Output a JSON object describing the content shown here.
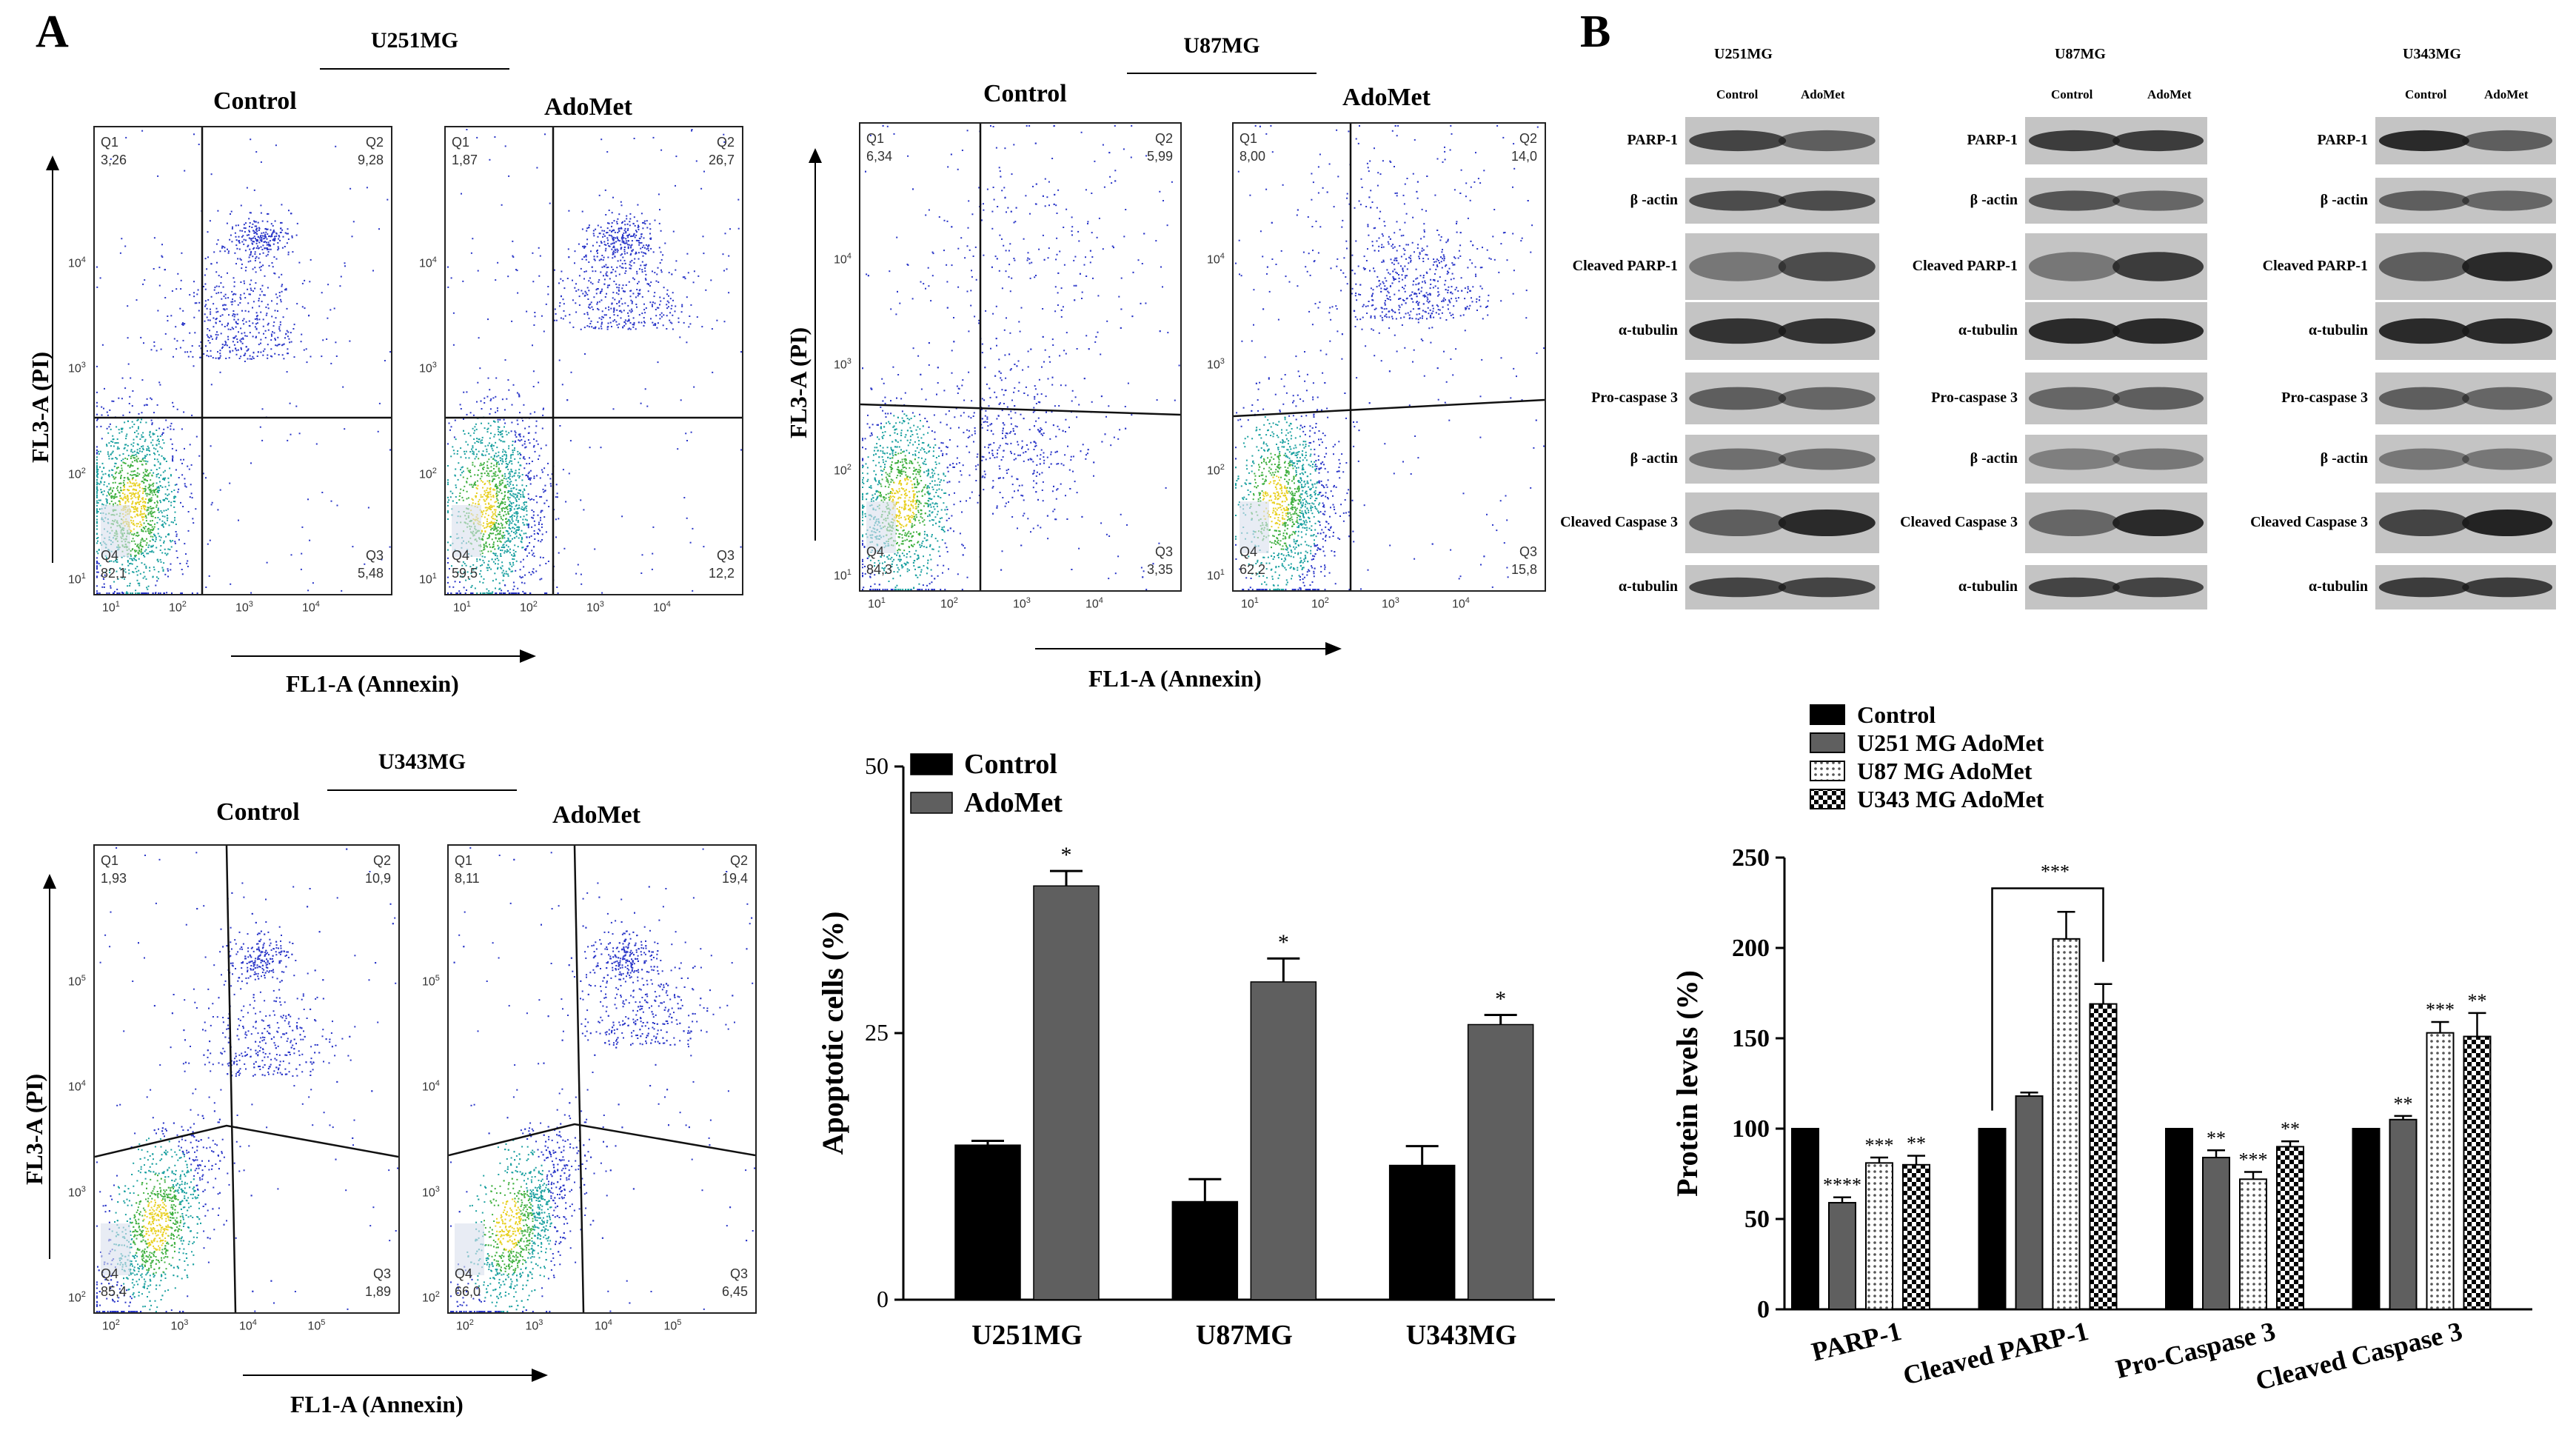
{
  "panelA": {
    "letter": "A",
    "axis_y": "FL3-A (PI)",
    "axis_x": "FL1-A (Annexin)",
    "control_label": "Control",
    "adomet_label": "AdoMet",
    "groups": [
      {
        "cell_line": "U251MG",
        "control": {
          "Q1": "3,26",
          "Q2": "9,28",
          "Q3": "5,48",
          "Q4": "82,1"
        },
        "adomet": {
          "Q1": "1,87",
          "Q2": "26,7",
          "Q3": "12,2",
          "Q4": "59,5"
        }
      },
      {
        "cell_line": "U87MG",
        "control": {
          "Q1": "6,34",
          "Q2": "5,99",
          "Q3": "3,35",
          "Q4": "84,3"
        },
        "adomet": {
          "Q1": "8,00",
          "Q2": "14,0",
          "Q3": "15,8",
          "Q4": "62,2"
        }
      },
      {
        "cell_line": "U343MG",
        "control": {
          "Q1": "1,93",
          "Q2": "10,9",
          "Q3": "1,89",
          "Q4": "85,4"
        },
        "adomet": {
          "Q1": "8,11",
          "Q2": "19,4",
          "Q3": "6,45",
          "Q4": "66,0"
        }
      }
    ],
    "quadrant_names": [
      "Q1",
      "Q2",
      "Q3",
      "Q4"
    ],
    "tick_exponents_a": [
      "1",
      "2",
      "3",
      "4"
    ],
    "tick_exponents_c": [
      "2",
      "3",
      "4",
      "5"
    ],
    "tick_base": "10"
  },
  "panelB": {
    "letter": "B",
    "blots": [
      {
        "cell_line": "U251MG",
        "columns": [
          "Control",
          "AdoMet"
        ],
        "rows": [
          "PARP-1",
          "β -actin",
          "Cleaved PARP-1",
          "α-tubulin",
          "Pro-caspase 3",
          "β -actin",
          "Cleaved Caspase 3",
          "α-tubulin"
        ]
      },
      {
        "cell_line": "U87MG",
        "columns": [
          "Control",
          "AdoMet"
        ],
        "rows": [
          "PARP-1",
          "β -actin",
          "Cleaved PARP-1",
          "α-tubulin",
          "Pro-caspase 3",
          "β -actin",
          "Cleaved Caspase 3",
          "α-tubulin"
        ]
      },
      {
        "cell_line": "U343MG",
        "columns": [
          "Control",
          "AdoMet"
        ],
        "rows": [
          "PARP-1",
          "β -actin",
          "Cleaved PARP-1",
          "α-tubulin",
          "Pro-caspase 3",
          "β -actin",
          "Cleaved Caspase 3",
          "α-tubulin"
        ]
      }
    ]
  },
  "chart_data": [
    {
      "type": "bar",
      "title": "",
      "ylabel": "Apoptotic cells (%)",
      "xlabel": "",
      "categories": [
        "U251MG",
        "U87MG",
        "U343MG"
      ],
      "ylim": [
        0,
        50
      ],
      "yticks": [
        "0",
        "25",
        "50"
      ],
      "series": [
        {
          "name": "Control",
          "color": "#000000",
          "values": [
            14.5,
            9.2,
            12.6
          ],
          "errors": [
            0.4,
            2.1,
            1.8
          ],
          "stars": [
            "",
            "",
            ""
          ]
        },
        {
          "name": "AdoMet",
          "color": "#5f5f5f",
          "values": [
            38.8,
            29.8,
            25.8
          ],
          "errors": [
            1.4,
            2.2,
            0.9
          ],
          "stars": [
            "*",
            "*",
            "*"
          ]
        }
      ]
    },
    {
      "type": "bar",
      "title": "",
      "ylabel": "Protein levels (%)",
      "xlabel": "",
      "categories": [
        "PARP-1",
        "Cleaved PARP-1",
        "Pro-Caspase 3",
        "Cleaved Caspase 3"
      ],
      "ylim": [
        0,
        250
      ],
      "yticks": [
        "0",
        "50",
        "100",
        "150",
        "200",
        "250"
      ],
      "bracket_label": "***",
      "series": [
        {
          "name": "Control",
          "color": "#000000",
          "pattern": "solid",
          "values": [
            100,
            100,
            100,
            100
          ],
          "errors": [
            0,
            0,
            0,
            0
          ],
          "stars": [
            "",
            "",
            "",
            ""
          ]
        },
        {
          "name": "U251 MG AdoMet",
          "color": "#5f5f5f",
          "pattern": "solid",
          "values": [
            59,
            118,
            84,
            105
          ],
          "errors": [
            3,
            2,
            4,
            2
          ],
          "stars": [
            "****",
            "",
            "**",
            "**"
          ]
        },
        {
          "name": "U87 MG AdoMet",
          "color": "#ffffff",
          "pattern": "dots",
          "values": [
            81,
            205,
            72,
            153
          ],
          "errors": [
            3,
            15,
            4,
            6
          ],
          "stars": [
            "***",
            "",
            "***",
            "***"
          ]
        },
        {
          "name": "U343 MG AdoMet",
          "color": "#000000",
          "pattern": "check",
          "values": [
            80,
            169,
            90,
            151
          ],
          "errors": [
            5,
            11,
            3,
            13
          ],
          "stars": [
            "**",
            "",
            "**",
            "**"
          ]
        }
      ]
    }
  ]
}
